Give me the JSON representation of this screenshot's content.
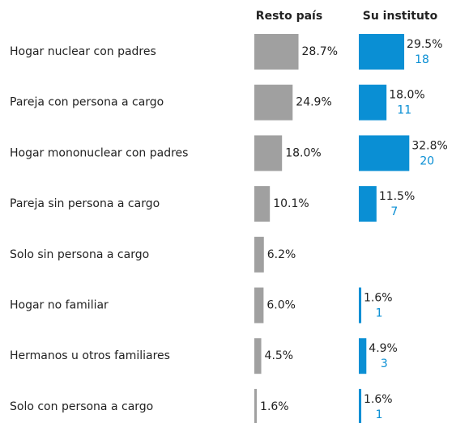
{
  "chart_data": {
    "type": "bar",
    "categories": [
      "Hogar nuclear con padres",
      "Pareja con persona a cargo",
      "Hogar mononuclear con padres",
      "Pareja sin persona a cargo",
      "Solo sin persona a cargo",
      "Hogar no familiar",
      "Hermanos u otros familiares",
      "Solo con persona a cargo"
    ],
    "series": [
      {
        "name": "Resto país",
        "color": "#a0a0a0",
        "values": [
          28.7,
          24.9,
          18.0,
          10.1,
          6.2,
          6.0,
          4.5,
          1.6
        ],
        "value_labels": [
          "28.7%",
          "24.9%",
          "18.0%",
          "10.1%",
          "6.2%",
          "6.0%",
          "4.5%",
          "1.6%"
        ]
      },
      {
        "name": "Su instituto",
        "color": "#0a8fd4",
        "values": [
          29.5,
          18.0,
          32.8,
          11.5,
          null,
          1.6,
          4.9,
          1.6
        ],
        "value_labels": [
          "29.5%",
          "18.0%",
          "32.8%",
          "11.5%",
          null,
          "1.6%",
          "4.9%",
          "1.6%"
        ],
        "counts": [
          18,
          11,
          20,
          7,
          null,
          1,
          3,
          1
        ]
      }
    ]
  }
}
